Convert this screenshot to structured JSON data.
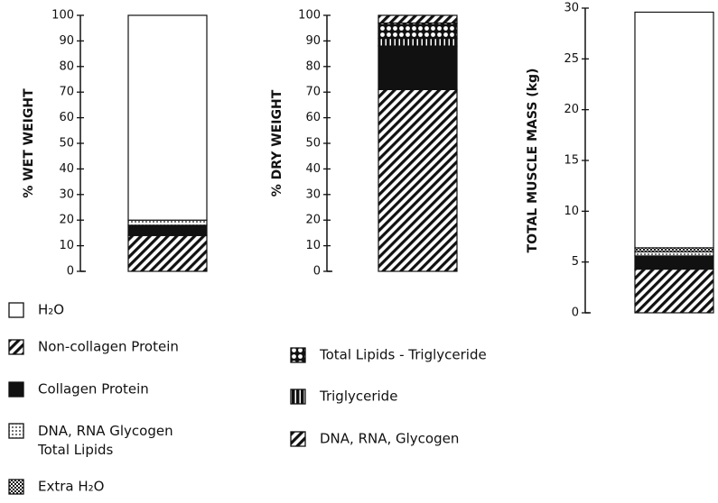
{
  "chart_data": [
    {
      "type": "stacked-bar",
      "y_label": "% WET WEIGHT",
      "ylim": [
        0,
        100
      ],
      "yticks": [
        0,
        10,
        20,
        30,
        40,
        50,
        60,
        70,
        80,
        90,
        100
      ],
      "series": [
        {
          "name": "Non-collagen Protein",
          "pattern": "hatch",
          "values": [
            14
          ]
        },
        {
          "name": "Collagen Protein",
          "pattern": "solid",
          "values": [
            4
          ]
        },
        {
          "name": "DNA, RNA Glycogen\nTotal Lipids",
          "pattern": "dots",
          "values": [
            2
          ]
        },
        {
          "name": "Extra H₂O",
          "pattern": "checker",
          "values": [
            null
          ]
        },
        {
          "name": "H₂O",
          "pattern": "white",
          "values": [
            80
          ]
        }
      ],
      "legend_order": [
        "H₂O",
        "Non-collagen Protein",
        "Collagen Protein",
        "DNA, RNA Glycogen\nTotal Lipids",
        "Extra H₂O"
      ]
    },
    {
      "type": "stacked-bar",
      "y_label": "% DRY WEIGHT",
      "ylim": [
        0,
        100
      ],
      "yticks": [
        0,
        10,
        20,
        30,
        40,
        50,
        60,
        70,
        80,
        90,
        100
      ],
      "series": [
        {
          "pattern": "hatch",
          "values": [
            71
          ]
        },
        {
          "pattern": "solid",
          "values": [
            17
          ]
        },
        {
          "name": "Triglyceride",
          "pattern": "stripes",
          "values": [
            3
          ]
        },
        {
          "name": "Total Lipids - Triglyceride",
          "pattern": "circles",
          "values": [
            6
          ]
        },
        {
          "name": "DNA, RNA, Glycogen",
          "pattern": "hatch",
          "values": [
            3
          ]
        }
      ],
      "legend_order": [
        "Total Lipids - Triglyceride",
        "Triglyceride",
        "DNA, RNA, Glycogen"
      ]
    },
    {
      "type": "stacked-bar",
      "y_label": "TOTAL MUSCLE MASS (kg)",
      "ylim": [
        0,
        30
      ],
      "yticks": [
        0,
        5,
        10,
        15,
        20,
        25,
        30
      ],
      "series": [
        {
          "pattern": "hatch",
          "values": [
            4.3
          ]
        },
        {
          "pattern": "solid",
          "values": [
            1.3
          ]
        },
        {
          "pattern": "dots",
          "values": [
            0.4
          ]
        },
        {
          "pattern": "checker",
          "values": [
            0.4
          ]
        },
        {
          "pattern": "white",
          "values": [
            23.2
          ]
        }
      ]
    }
  ]
}
